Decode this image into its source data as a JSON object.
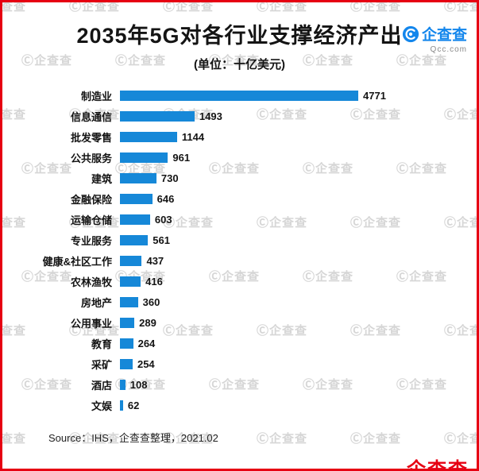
{
  "frame": {
    "border_color": "#e60012"
  },
  "header": {
    "title": "2035年5G对各行业支撑经济产出",
    "subtitle": "(单位：十亿美元)"
  },
  "logo": {
    "name": "企查查",
    "domain": "Qcc.com",
    "color": "#1386ec"
  },
  "chart_data": {
    "type": "bar",
    "orientation": "horizontal",
    "title": "2035年5G对各行业支撑经济产出",
    "unit": "十亿美元",
    "xlabel": "",
    "ylabel": "",
    "xlim": [
      0,
      5000
    ],
    "grid": false,
    "bar_color": "#1688d8",
    "categories": [
      "制造业",
      "信息通信",
      "批发零售",
      "公共服务",
      "建筑",
      "金融保险",
      "运输仓储",
      "专业服务",
      "健康&社区工作",
      "农林渔牧",
      "房地产",
      "公用事业",
      "教育",
      "采矿",
      "酒店",
      "文娱"
    ],
    "values": [
      4771,
      1493,
      1144,
      961,
      730,
      646,
      603,
      561,
      437,
      416,
      360,
      289,
      264,
      254,
      108,
      62
    ]
  },
  "footer": {
    "source": "Source：IHS，企查查整理，2021.02"
  },
  "watermark": {
    "symbol": "Ⓒ",
    "text": "企查查"
  }
}
